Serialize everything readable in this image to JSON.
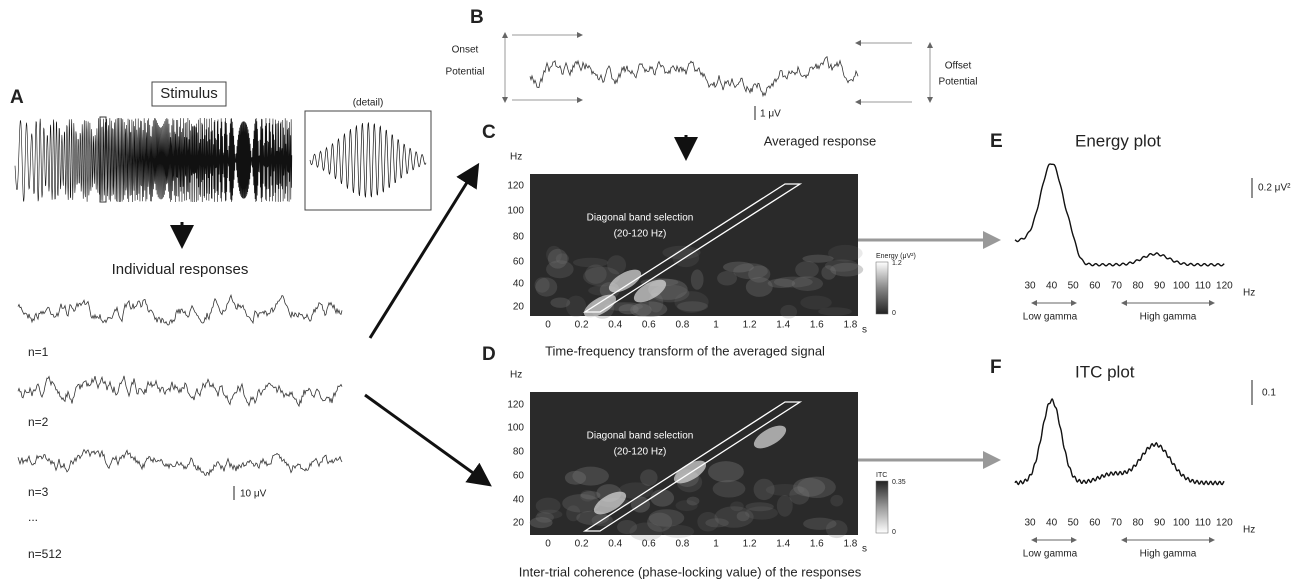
{
  "panel_a": {
    "label": "A",
    "stimulus": "Stimulus",
    "detail": "(detail)",
    "responses_title": "Individual responses",
    "trials": [
      "n=1",
      "n=2",
      "n=3",
      "...",
      "n=512"
    ],
    "scale": "10 μV"
  },
  "panel_b": {
    "label": "B",
    "onset": [
      "Onset",
      "Potential"
    ],
    "offset": [
      "Offset",
      "Potential"
    ],
    "scale": "1 μV",
    "caption": "Averaged response"
  },
  "panel_c": {
    "label": "C",
    "y_unit": "Hz",
    "yticks": [
      20,
      40,
      60,
      80,
      100,
      120
    ],
    "xticks": [
      0,
      0.2,
      0.4,
      0.6,
      0.8,
      1,
      1.2,
      1.4,
      1.6,
      1.8
    ],
    "x_unit": "s",
    "band": [
      "Diagonal band selection",
      "(20-120 Hz)"
    ],
    "colorbar": {
      "title": "Energy (μV²)",
      "max": 1.2,
      "min": 0
    },
    "caption": "Time-frequency transform of the averaged signal"
  },
  "panel_d": {
    "label": "D",
    "y_unit": "Hz",
    "yticks": [
      20,
      40,
      60,
      80,
      100,
      120
    ],
    "xticks": [
      0,
      0.2,
      0.4,
      0.6,
      0.8,
      1,
      1.2,
      1.4,
      1.6,
      1.8
    ],
    "x_unit": "s",
    "band": [
      "Diagonal band selection",
      "(20-120 Hz)"
    ],
    "colorbar": {
      "title": "ITC",
      "max": 0.35,
      "min": 0
    },
    "caption": "Inter-trial coherence (phase-locking value) of the responses"
  },
  "panel_e": {
    "label": "E",
    "title": "Energy plot",
    "scale": "0.2 μV²",
    "xticks": [
      30,
      40,
      50,
      60,
      70,
      80,
      90,
      100,
      110,
      120
    ],
    "x_unit": "Hz",
    "low": "Low gamma",
    "high": "High gamma"
  },
  "panel_f": {
    "label": "F",
    "title": "ITC plot",
    "scale": "0.1",
    "xticks": [
      30,
      40,
      50,
      60,
      70,
      80,
      90,
      100,
      110,
      120
    ],
    "x_unit": "Hz",
    "low": "Low gamma",
    "high": "High gamma"
  }
}
